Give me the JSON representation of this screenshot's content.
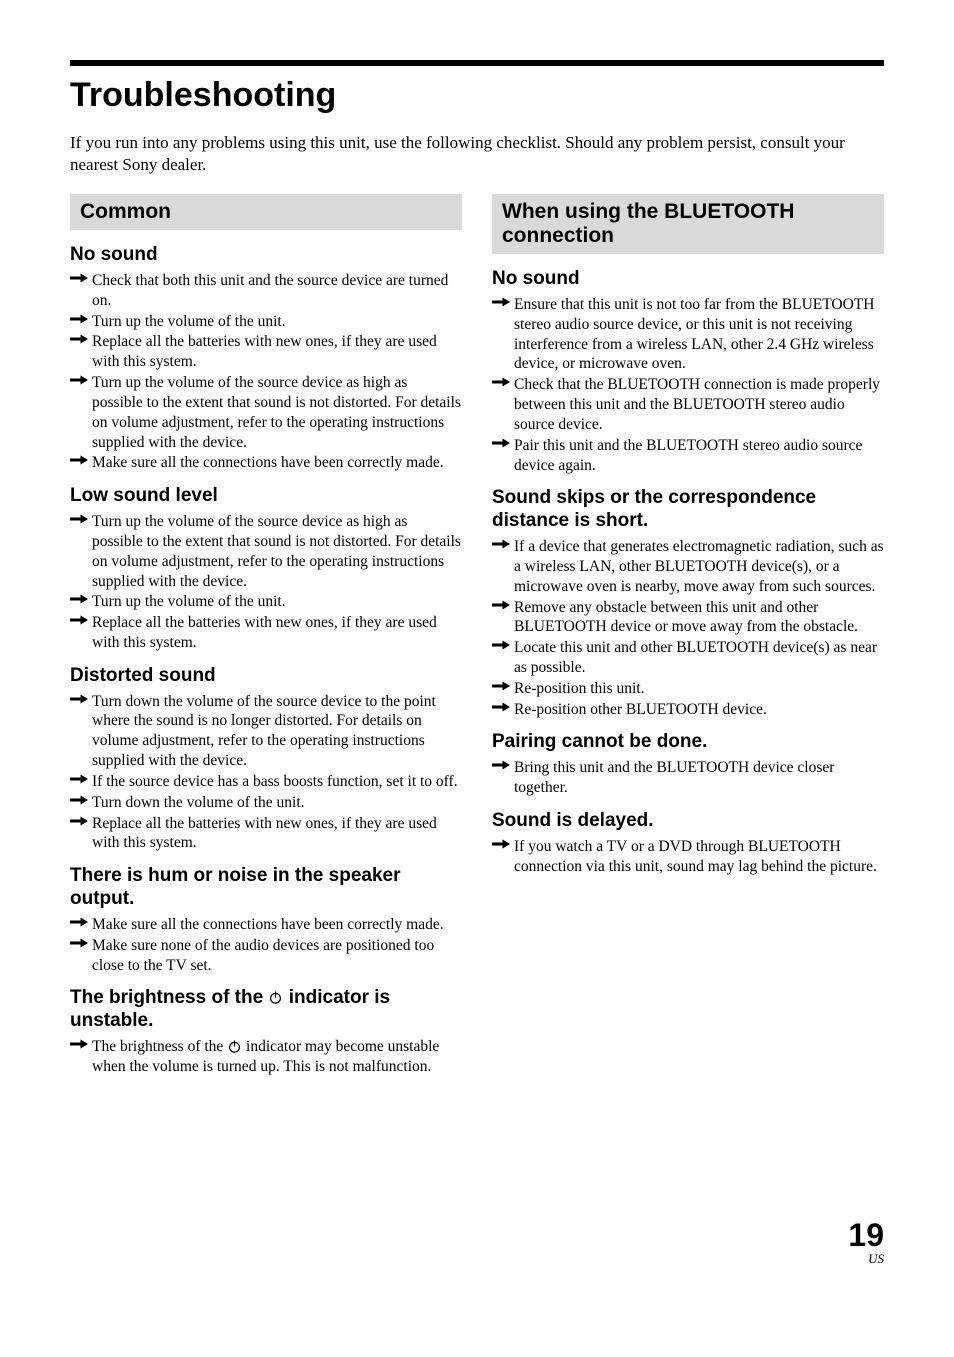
{
  "title": "Troubleshooting",
  "intro": "If you run into any problems using this unit, use the following checklist. Should any problem persist, consult your nearest Sony dealer.",
  "pageNumber": "19",
  "pageRegion": "US",
  "colors": {
    "rule": "#000000",
    "sectionBg": "#d9d9d9",
    "text": "#000000",
    "background": "#ffffff"
  },
  "left": {
    "header": "Common",
    "sections": [
      {
        "heading": "No sound",
        "items": [
          "Check that both this unit and the source device are turned on.",
          "Turn up the volume of the unit.",
          "Replace all the batteries with new ones, if they are used with this system.",
          "Turn up the volume of the source device as high as possible to the extent that sound is not distorted. For details on volume adjustment, refer to the operating instructions supplied with the device.",
          "Make sure all the connections have been correctly made."
        ]
      },
      {
        "heading": "Low sound level",
        "items": [
          "Turn up the volume of the source device as high as possible to the extent that sound is not distorted. For details on volume adjustment, refer to the operating instructions supplied with the device.",
          "Turn up the volume of the unit.",
          "Replace all the batteries with new ones, if they are used with this system."
        ]
      },
      {
        "heading": "Distorted sound",
        "items": [
          "Turn down the volume of the source device to the point where the sound is no longer distorted. For details on volume adjustment, refer to the operating instructions supplied with the device.",
          "If the source device has a bass boosts function, set it to off.",
          "Turn down the volume of the unit.",
          "Replace all the batteries with new ones, if they are used with this system."
        ]
      },
      {
        "heading": "There is hum or noise in the speaker output.",
        "items": [
          "Make sure all the connections have been correctly made.",
          "Make sure none of the audio devices are positioned too close to the TV set."
        ]
      },
      {
        "headingPrefix": "The brightness of the ",
        "headingSuffix": " indicator is unstable.",
        "hasPowerIcon": true,
        "items": [],
        "specialItem": {
          "prefix": "The brightness of the ",
          "suffix": " indicator may become unstable when the volume is turned up. This is not malfunction."
        }
      }
    ]
  },
  "right": {
    "header": "When using the BLUETOOTH connection",
    "sections": [
      {
        "heading": "No sound",
        "items": [
          "Ensure that this unit is not too far from the BLUETOOTH stereo audio source device, or this unit is not receiving interference from a wireless LAN, other 2.4 GHz wireless device, or microwave oven.",
          "Check that the BLUETOOTH connection is made properly between this unit and the BLUETOOTH stereo audio source device.",
          "Pair this unit and the BLUETOOTH stereo audio source device again."
        ]
      },
      {
        "heading": "Sound skips or the correspondence distance is short.",
        "items": [
          "If a device that generates electromagnetic radiation, such as a wireless LAN, other BLUETOOTH device(s), or a microwave oven is nearby, move away from such sources.",
          "Remove any obstacle between this unit and other BLUETOOTH device or move away from the obstacle.",
          "Locate this unit and other BLUETOOTH device(s) as near as possible.",
          "Re-position this unit.",
          "Re-position other BLUETOOTH device."
        ]
      },
      {
        "heading": "Pairing cannot be done.",
        "items": [
          "Bring this unit and the BLUETOOTH device closer together."
        ]
      },
      {
        "heading": "Sound is delayed.",
        "items": [
          "If you watch a TV or a DVD through BLUETOOTH connection via this unit, sound may lag behind the picture."
        ]
      }
    ]
  }
}
